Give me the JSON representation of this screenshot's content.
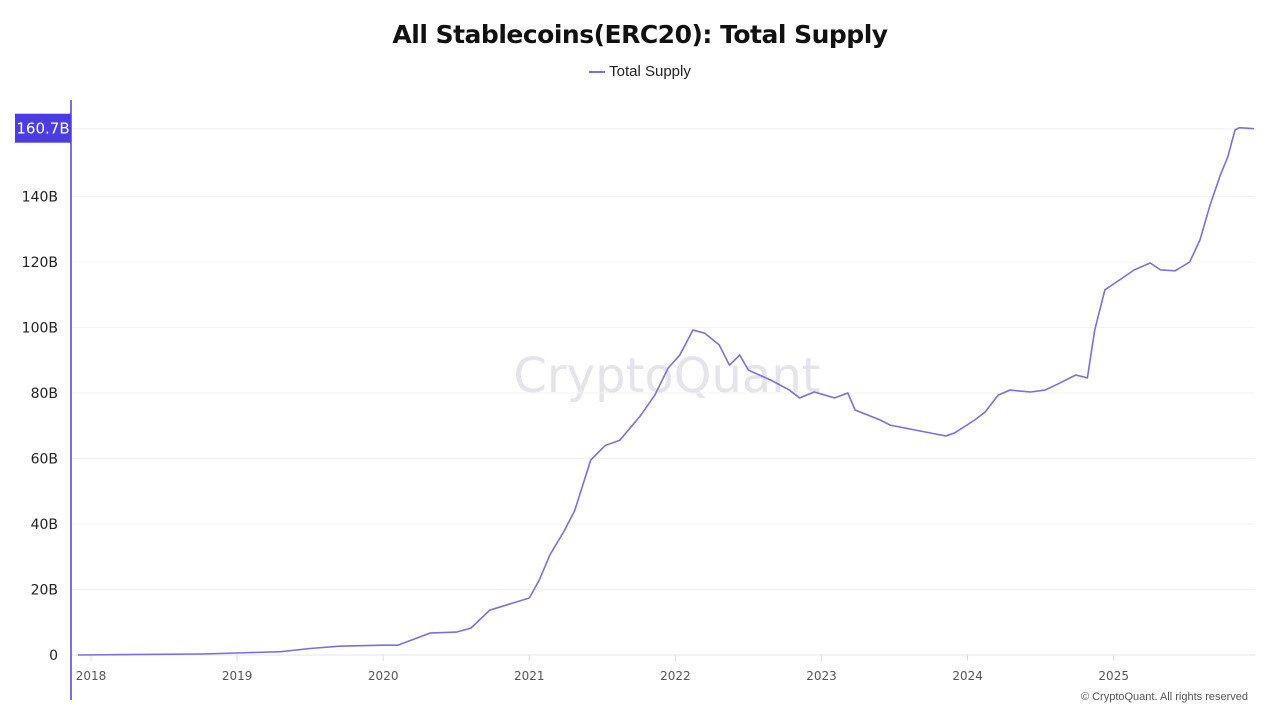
{
  "chart_data": {
    "type": "line",
    "title": "All Stablecoins(ERC20): Total Supply",
    "legend": {
      "position": "top-center",
      "entries": [
        "Total Supply"
      ]
    },
    "series": [
      {
        "name": "Total Supply",
        "color": "#7b6fe0",
        "x": [
          2017.91,
          2018.75,
          2019.0,
          2019.3,
          2019.5,
          2019.7,
          2020.0,
          2020.1,
          2020.22,
          2020.32,
          2020.5,
          2020.6,
          2020.73,
          2021.0,
          2021.07,
          2021.14,
          2021.24,
          2021.31,
          2021.42,
          2021.52,
          2021.62,
          2021.76,
          2021.86,
          2021.95,
          2022.03,
          2022.12,
          2022.2,
          2022.3,
          2022.37,
          2022.44,
          2022.5,
          2022.65,
          2022.78,
          2022.85,
          2022.95,
          2023.09,
          2023.18,
          2023.23,
          2023.4,
          2023.47,
          2023.57,
          2023.71,
          2023.85,
          2023.91,
          2024.05,
          2024.12,
          2024.21,
          2024.29,
          2024.43,
          2024.53,
          2024.63,
          2024.74,
          2024.82,
          2024.87,
          2024.94,
          2025.04,
          2025.14,
          2025.25,
          2025.32,
          2025.42,
          2025.52,
          2025.59,
          2025.66,
          2025.73,
          2025.78,
          2025.83,
          2025.86,
          2025.96
        ],
        "y": [
          0,
          0.3,
          0.6,
          1,
          2,
          2.7,
          3,
          3,
          5,
          6.7,
          7,
          8.2,
          13.7,
          17.4,
          23,
          30.5,
          38,
          44,
          59.5,
          64,
          65.6,
          73,
          79.4,
          87.6,
          91.6,
          99.2,
          98.3,
          94.7,
          88.5,
          91.6,
          87,
          84,
          80.9,
          78.5,
          80.3,
          78.5,
          80,
          74.8,
          71.8,
          70.2,
          69.3,
          68.1,
          66.9,
          67.8,
          71.8,
          74.2,
          79.4,
          80.9,
          80.3,
          80.9,
          83,
          85.5,
          84.6,
          99.2,
          111.5,
          114.5,
          117.6,
          119.7,
          117.6,
          117.3,
          120,
          126.7,
          137.4,
          146.6,
          152,
          160.3,
          161,
          160.7
        ]
      }
    ],
    "xlabel": "",
    "ylabel": "",
    "xlim": [
      2017.91,
      2025.96
    ],
    "ylim": [
      0,
      170
    ],
    "x_ticks": [
      "2018",
      "2019",
      "2020",
      "2021",
      "2022",
      "2023",
      "2024",
      "2025"
    ],
    "y_ticks": [
      "0",
      "20B",
      "40B",
      "60B",
      "80B",
      "100B",
      "120B",
      "140B"
    ],
    "last_value_label": "160.7B",
    "last_value": 160.7,
    "grid": true
  },
  "watermark": "CryptoQuant",
  "footer": "© CryptoQuant. All rights reserved",
  "colors": {
    "line": "#7b6fe0",
    "badge": "#4b3de3"
  }
}
